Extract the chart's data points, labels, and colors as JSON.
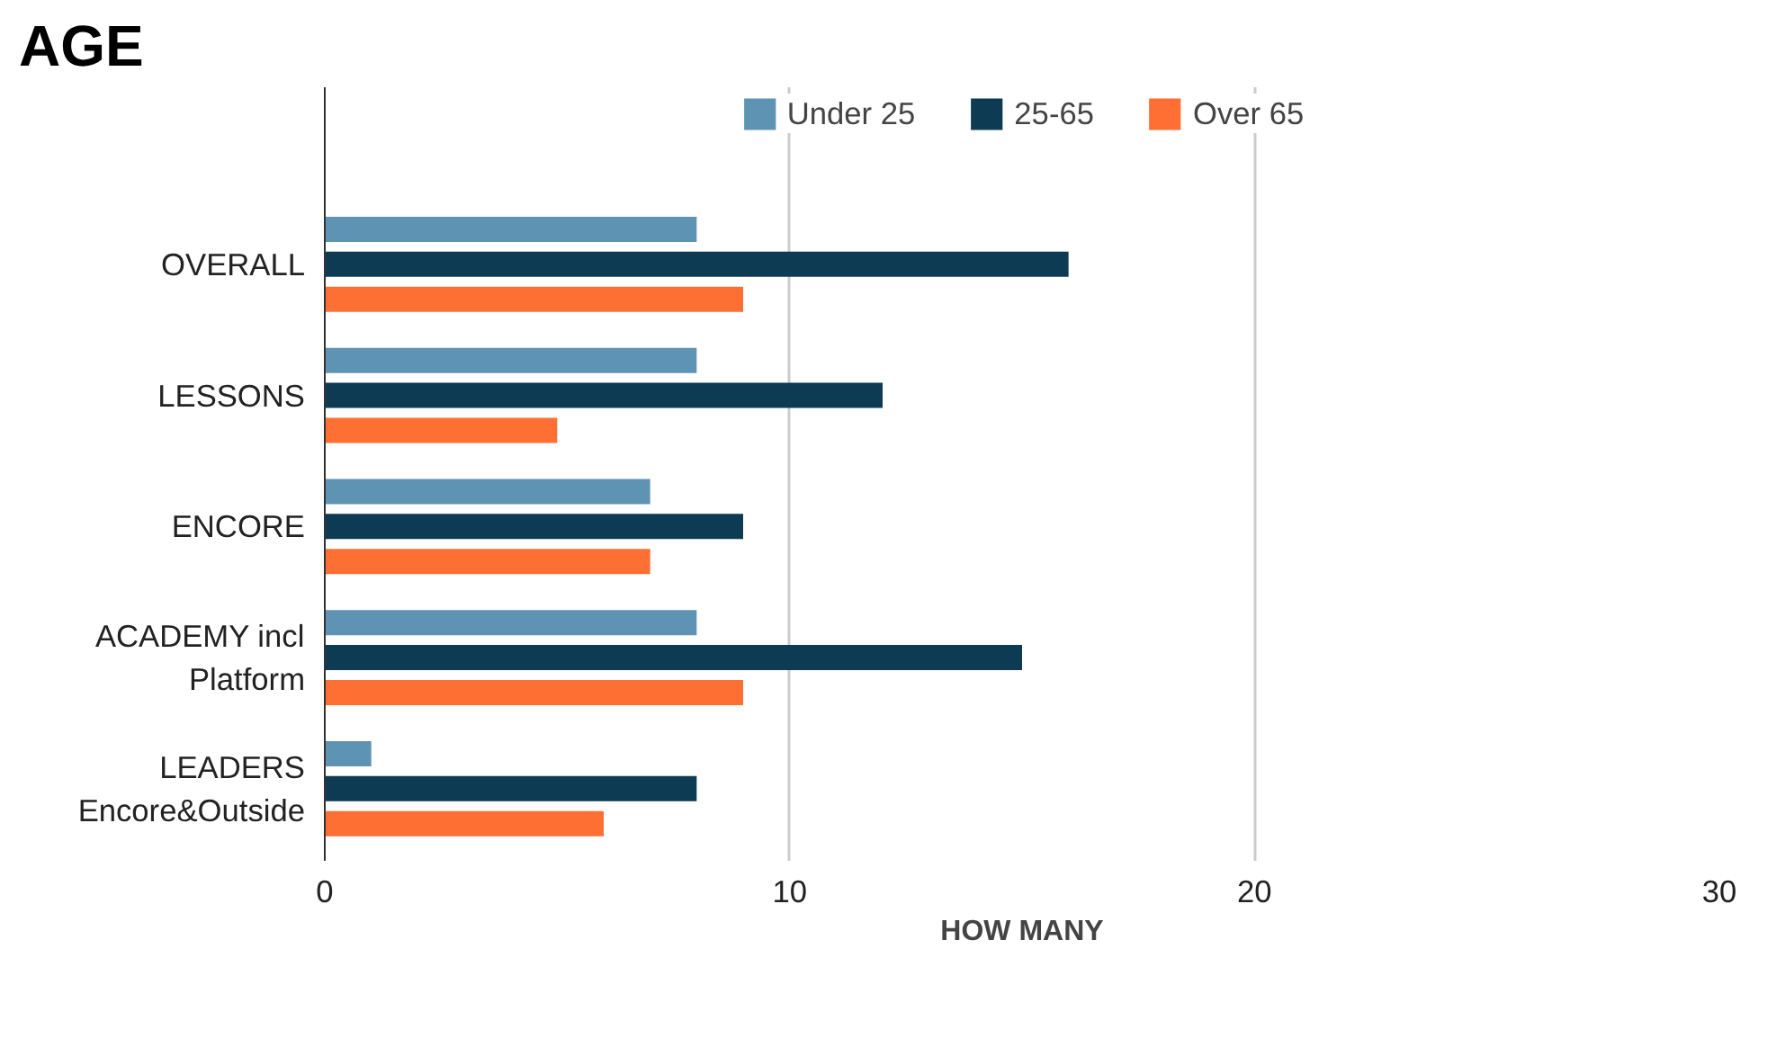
{
  "chart_data": {
    "type": "bar",
    "orientation": "horizontal",
    "title": "AGE",
    "xlabel": "HOW MANY",
    "categories": [
      "OVERALL",
      "LESSONS",
      "ENCORE",
      "ACADEMY incl Platform",
      "LEADERS Encore&Outside"
    ],
    "series": [
      {
        "name": "Under 25",
        "color": "#5f93b3",
        "values": [
          8,
          8,
          7,
          8,
          1
        ]
      },
      {
        "name": "25-65",
        "color": "#0d3b54",
        "values": [
          16,
          12,
          9,
          15,
          8
        ]
      },
      {
        "name": "Over 65",
        "color": "#fd6f33",
        "values": [
          9,
          5,
          7,
          9,
          6
        ]
      }
    ],
    "xlim": [
      0,
      30
    ],
    "xticks": [
      0,
      10,
      20,
      30
    ],
    "grid": "x",
    "legend": "top"
  }
}
